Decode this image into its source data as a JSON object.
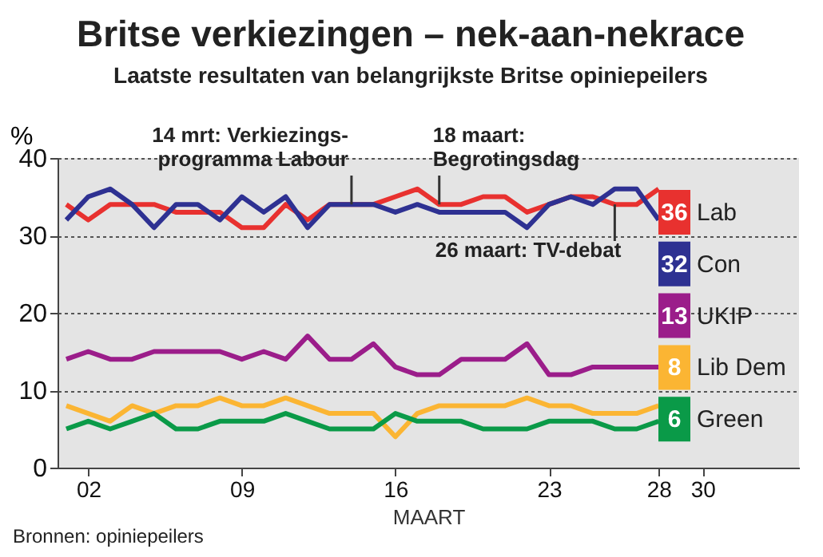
{
  "chart_data": {
    "type": "line",
    "title": "Britse verkiezingen – nek-aan-nekrace",
    "subtitle": "Laatste resultaten van belangrijkste Britse opiniepeilers",
    "xlabel": "MAART",
    "ylabel": "%",
    "x": [
      1,
      2,
      3,
      4,
      5,
      6,
      7,
      8,
      9,
      10,
      11,
      12,
      13,
      14,
      15,
      16,
      17,
      18,
      19,
      20,
      21,
      22,
      23,
      24,
      25,
      26,
      27,
      28
    ],
    "series": [
      {
        "name": "Lab",
        "color": "#e8312f",
        "values": [
          34,
          32,
          34,
          34,
          34,
          33,
          33,
          33,
          31,
          31,
          34,
          32,
          34,
          34,
          34,
          35,
          36,
          34,
          34,
          35,
          35,
          33,
          34,
          35,
          35,
          34,
          34,
          36
        ],
        "value_labels": [
          null,
          null,
          null,
          null,
          null,
          null,
          null,
          null,
          null,
          null,
          null,
          null,
          null,
          null,
          null,
          null,
          null,
          null,
          null,
          null,
          null,
          null,
          null,
          null,
          null,
          null,
          null,
          "36"
        ]
      },
      {
        "name": "Con",
        "color": "#2e3192",
        "values": [
          32,
          35,
          36,
          34,
          31,
          34,
          34,
          32,
          35,
          33,
          35,
          31,
          34,
          34,
          34,
          33,
          34,
          33,
          33,
          33,
          33,
          31,
          34,
          35,
          34,
          36,
          36,
          32
        ],
        "value_labels": [
          null,
          null,
          null,
          null,
          null,
          null,
          null,
          null,
          null,
          null,
          null,
          null,
          null,
          null,
          null,
          null,
          null,
          null,
          null,
          null,
          null,
          null,
          null,
          null,
          null,
          null,
          null,
          "32"
        ]
      },
      {
        "name": "UKIP",
        "color": "#9b1d8a",
        "values": [
          14,
          15,
          14,
          14,
          15,
          15,
          15,
          15,
          14,
          15,
          14,
          17,
          14,
          14,
          16,
          13,
          12,
          12,
          14,
          14,
          14,
          16,
          12,
          12,
          13,
          13,
          13,
          13
        ],
        "value_labels": [
          null,
          null,
          null,
          null,
          null,
          null,
          null,
          null,
          null,
          null,
          null,
          null,
          null,
          null,
          null,
          null,
          null,
          null,
          null,
          null,
          null,
          null,
          null,
          null,
          null,
          null,
          null,
          "13"
        ]
      },
      {
        "name": "Lib Dem",
        "color": "#fbb533",
        "values": [
          8,
          7,
          6,
          8,
          7,
          8,
          8,
          9,
          8,
          8,
          9,
          8,
          7,
          7,
          7,
          4,
          7,
          8,
          8,
          8,
          8,
          9,
          8,
          8,
          7,
          7,
          7,
          8
        ],
        "value_labels": [
          null,
          null,
          null,
          null,
          null,
          null,
          null,
          null,
          null,
          null,
          null,
          null,
          null,
          null,
          null,
          null,
          null,
          null,
          null,
          null,
          null,
          null,
          null,
          null,
          null,
          null,
          null,
          "8"
        ]
      },
      {
        "name": "Green",
        "color": "#0a9a48",
        "values": [
          5,
          6,
          5,
          6,
          7,
          5,
          5,
          6,
          6,
          6,
          7,
          6,
          5,
          5,
          5,
          7,
          6,
          6,
          6,
          5,
          5,
          5,
          6,
          6,
          6,
          5,
          5,
          6
        ],
        "value_labels": [
          null,
          null,
          null,
          null,
          null,
          null,
          null,
          null,
          null,
          null,
          null,
          null,
          null,
          null,
          null,
          null,
          null,
          null,
          null,
          null,
          null,
          null,
          null,
          null,
          null,
          null,
          null,
          "6"
        ]
      }
    ],
    "xlim": [
      0.6,
      34.4
    ],
    "xticks": [
      {
        "value": 2,
        "label": "02"
      },
      {
        "value": 9,
        "label": "09"
      },
      16,
      23,
      28,
      30
    ],
    "ylim": [
      0,
      40
    ],
    "yticks": [
      0,
      10,
      20,
      30,
      40
    ],
    "grid": "y",
    "legend": "right",
    "marker": "none",
    "line_style": "solid",
    "annotations": [
      {
        "text": "14 mrt: Verkiezings-\nprogramma Labour",
        "x": 14,
        "y": 34
      },
      {
        "text": "18 maart:\nBegrotingsdag",
        "x": 18,
        "y": 34
      },
      {
        "text": "26 maart: TV-debat",
        "x": 26,
        "y": 34
      },
      "Bronnen: opiniepeilers"
    ]
  }
}
